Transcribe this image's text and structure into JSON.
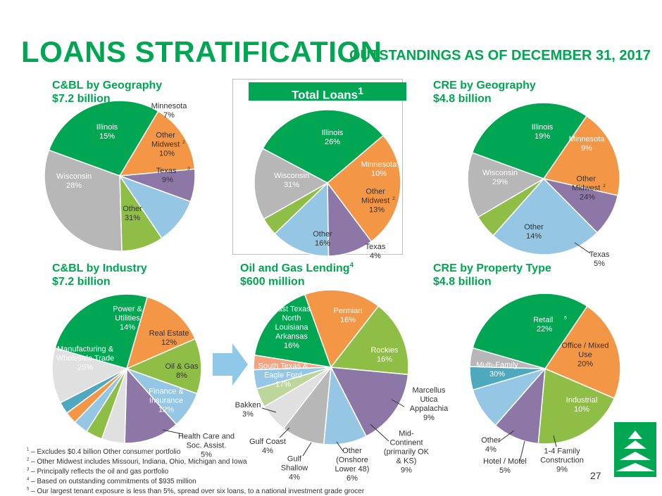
{
  "header": {
    "title": "LOANS STRATIFICATION",
    "subtitle": "OUTSTANDINGS AS OF DECEMBER 31, 2017"
  },
  "total_badge": "Total Loans",
  "total_badge_sup": "1",
  "page_number": "27",
  "footnotes": [
    {
      "mark": "1",
      "text": " – Excludes $0.4 billion Other consumer portfolio"
    },
    {
      "mark": "2",
      "text": " – Other Midwest includes Missouri, Indiana, Ohio, Michigan and Iowa"
    },
    {
      "mark": "3",
      "text": " – Principally reflects the oil and gas portfolio"
    },
    {
      "mark": "4",
      "text": " – Based on outstanding commitments of $935 million"
    },
    {
      "mark": "5",
      "text": " – Our largest tenant exposure is less than 5%, spread over six loans, to a national investment grade grocer"
    }
  ],
  "colors": {
    "green": "#00a651",
    "orange": "#f39645",
    "purple": "#8c77a7",
    "light_blue": "#95c7e5",
    "lime": "#8fbe46",
    "gray": "#b7b7b7",
    "teal": "#4fa9be",
    "light_gray": "#e0e0e0",
    "peach": "#f3a37f",
    "light_green": "#bcd69b",
    "arrow": "#8fc8e8"
  },
  "chart_data": [
    {
      "id": "cbl_geo",
      "type": "pie",
      "title": "C&BL by Geography",
      "subtitle": "$7.2 billion",
      "slices": [
        {
          "label": "Wisconsin",
          "value": 28,
          "color": "green"
        },
        {
          "label": "Illinois",
          "value": 15,
          "color": "orange"
        },
        {
          "label": "Minnesota",
          "value": 7,
          "color": "purple"
        },
        {
          "label": "Other Midwest",
          "sup": "2",
          "value": 10,
          "color": "light_blue"
        },
        {
          "label": "Texas",
          "sup": "3",
          "value": 9,
          "color": "lime"
        },
        {
          "label": "Other",
          "value": 31,
          "color": "gray"
        }
      ]
    },
    {
      "id": "total_loans",
      "type": "pie",
      "title": "Total Loans",
      "title_sup": "1",
      "slices": [
        {
          "label": "Wisconsin",
          "value": 31,
          "color": "green"
        },
        {
          "label": "Illinois",
          "value": 26,
          "color": "orange"
        },
        {
          "label": "Minnesota",
          "value": 10,
          "color": "purple"
        },
        {
          "label": "Other Midwest",
          "sup": "2",
          "value": 13,
          "color": "light_blue"
        },
        {
          "label": "Texas",
          "value": 4,
          "color": "lime"
        },
        {
          "label": "Other",
          "value": 16,
          "color": "gray"
        }
      ]
    },
    {
      "id": "cre_geo",
      "type": "pie",
      "title": "CRE by Geography",
      "subtitle": "$4.8 billion",
      "slices": [
        {
          "label": "Wisconsin",
          "value": 29,
          "color": "green"
        },
        {
          "label": "Illinois",
          "value": 19,
          "color": "orange"
        },
        {
          "label": "Minnesota",
          "value": 9,
          "color": "purple"
        },
        {
          "label": "Other Midwest",
          "sup": "2",
          "value": 24,
          "color": "light_blue"
        },
        {
          "label": "Texas",
          "value": 5,
          "color": "lime"
        },
        {
          "label": "Other",
          "value": 14,
          "color": "gray"
        }
      ]
    },
    {
      "id": "cbl_industry",
      "type": "pie",
      "title": "C&BL by Industry",
      "subtitle": "$7.2 billion",
      "slices": [
        {
          "label": "Manufacturing & Wholesale Trade",
          "value": 25,
          "color": "green"
        },
        {
          "label": "Power & Utilities",
          "value": 14,
          "color": "orange"
        },
        {
          "label": "Real Estate",
          "value": 12,
          "color": "lime"
        },
        {
          "label": "Oil & Gas",
          "value": 8,
          "color": "light_blue"
        },
        {
          "label": "Finance & Insurance",
          "value": 12,
          "color": "purple"
        },
        {
          "label": "Health Care and Soc. Assist.",
          "value": 5,
          "color": "light_gray"
        },
        {
          "label": "",
          "value": 3.6,
          "color": "lime"
        },
        {
          "label": "",
          "value": 3.2,
          "color": "light_blue"
        },
        {
          "label": "",
          "value": 2.6,
          "color": "orange"
        },
        {
          "label": "",
          "value": 2.6,
          "color": "teal"
        },
        {
          "label": "",
          "value": 12,
          "color": "light_gray"
        }
      ]
    },
    {
      "id": "oil_gas",
      "type": "pie",
      "title": "Oil and Gas Lending",
      "title_sup": "4",
      "subtitle": "$600 million",
      "slices": [
        {
          "label": "South Texas & Eagle Ford",
          "value": 17,
          "color": "green"
        },
        {
          "label": "East Texas North Louisiana Arkansas",
          "value": 16,
          "color": "orange"
        },
        {
          "label": "Permian",
          "value": 16,
          "color": "lime"
        },
        {
          "label": "Rockies",
          "value": 16,
          "color": "purple"
        },
        {
          "label": "Marcellus Utica Appalachia",
          "value": 9,
          "color": "light_blue"
        },
        {
          "label": "Mid-Continent (primarily OK & KS)",
          "value": 9,
          "color": "gray"
        },
        {
          "label": "Other (Onshore Lower 48)",
          "value": 6,
          "color": "light_gray"
        },
        {
          "label": "Gulf Shallow",
          "value": 4,
          "color": "light_green"
        },
        {
          "label": "Gulf Coast",
          "value": 4,
          "color": "light_blue"
        },
        {
          "label": "Bakken",
          "value": 3,
          "color": "peach"
        }
      ]
    },
    {
      "id": "cre_property",
      "type": "pie",
      "title": "CRE by Property Type",
      "subtitle": "$4.8 billion",
      "slices": [
        {
          "label": "Multi-Family",
          "value": 30,
          "color": "green"
        },
        {
          "label": "Retail",
          "sup": "5",
          "value": 22,
          "color": "orange"
        },
        {
          "label": "Office / Mixed Use",
          "value": 20,
          "color": "lime"
        },
        {
          "label": "Industrial",
          "value": 10,
          "color": "purple"
        },
        {
          "label": "1-4 Family Construction",
          "value": 9,
          "color": "light_blue"
        },
        {
          "label": "Hotel / Motel",
          "value": 5,
          "color": "teal"
        },
        {
          "label": "Other",
          "value": 4,
          "color": "gray"
        }
      ]
    }
  ]
}
